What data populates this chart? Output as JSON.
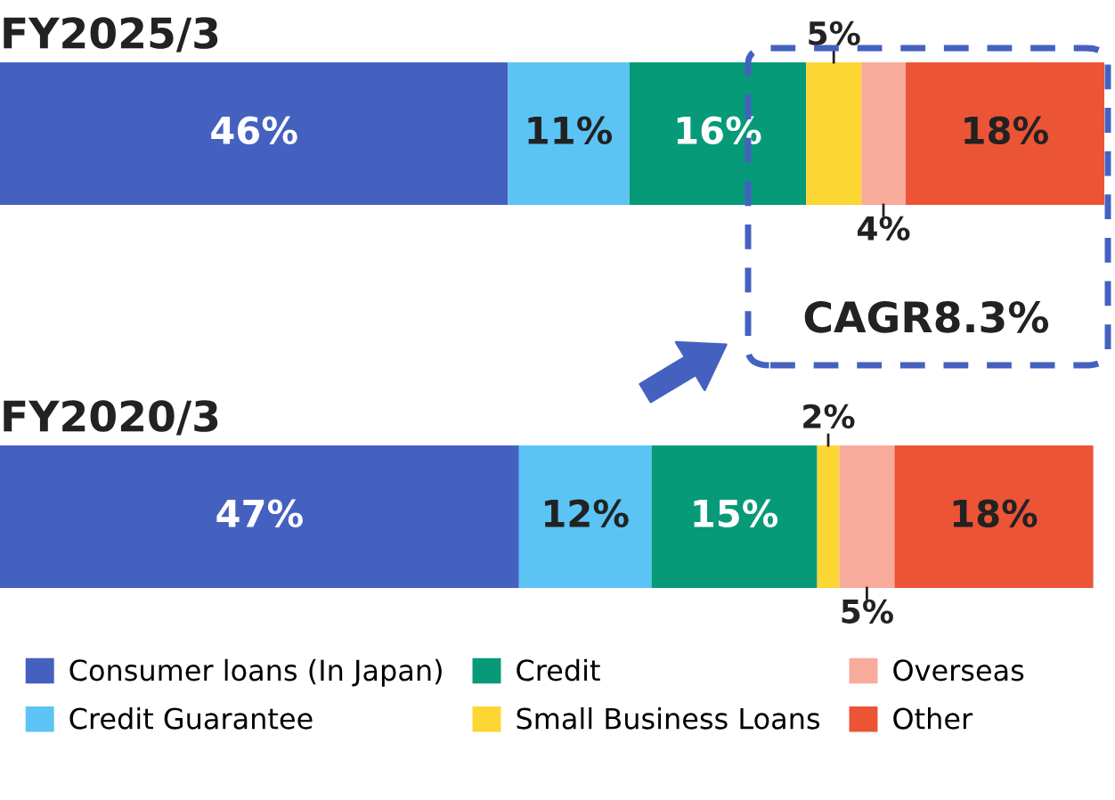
{
  "chart_data": {
    "type": "bar",
    "orientation": "horizontal",
    "stacked": true,
    "legend": "bottom",
    "tick_labels": false,
    "categories": [
      "FY2025/3",
      "FY2020/3"
    ],
    "series": [
      {
        "name": "Consumer loans (In Japan)",
        "color": "#4561c0",
        "values": [
          46,
          47
        ],
        "value_labels": [
          "46%",
          "47%"
        ]
      },
      {
        "name": "Credit Guarantee",
        "color": "#5bc4f5",
        "values": [
          11,
          12
        ],
        "value_labels": [
          "11%",
          "12%"
        ]
      },
      {
        "name": "Credit",
        "color": "#079a78",
        "values": [
          16,
          15
        ],
        "value_labels": [
          "16%",
          "15%"
        ]
      },
      {
        "name": "Small Business Loans",
        "color": "#fcd633",
        "values": [
          5,
          2
        ],
        "value_labels": [
          "5%",
          "2%"
        ]
      },
      {
        "name": "Overseas",
        "color": "#f9ab9b",
        "values": [
          4,
          5
        ],
        "value_labels": [
          "4%",
          "5%"
        ]
      },
      {
        "name": "Other",
        "color": "#ec5436",
        "values": [
          18,
          18
        ],
        "value_labels": [
          "18%",
          "18%"
        ]
      }
    ],
    "annotations": [
      "CAGR8.3%"
    ]
  }
}
